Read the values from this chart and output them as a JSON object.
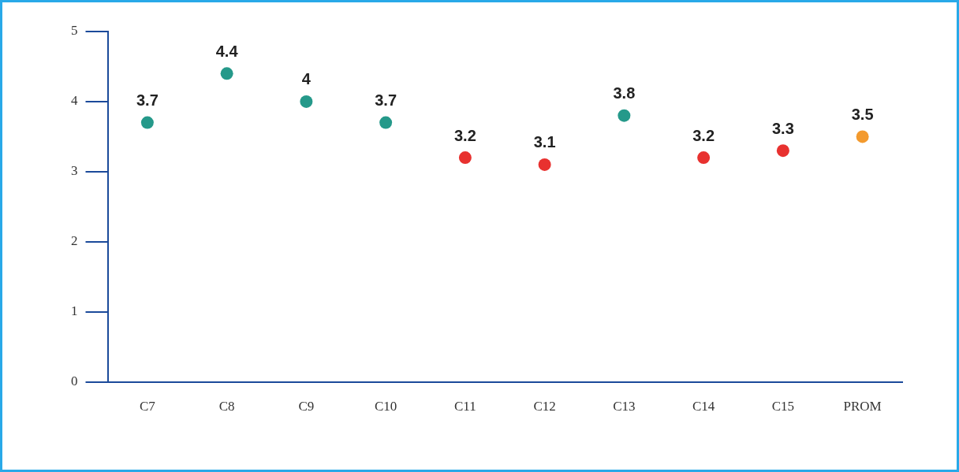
{
  "chart_data": {
    "type": "scatter",
    "categories": [
      "C7",
      "C8",
      "C9",
      "C10",
      "C11",
      "C12",
      "C13",
      "C14",
      "C15",
      "PROM"
    ],
    "values": [
      3.7,
      4.4,
      4,
      3.7,
      3.2,
      3.1,
      3.8,
      3.2,
      3.3,
      3.5
    ],
    "colors": [
      "#25998a",
      "#25998a",
      "#25998a",
      "#25998a",
      "#e8312f",
      "#e8312f",
      "#25998a",
      "#e8312f",
      "#e8312f",
      "#f39a2e"
    ],
    "ylim": [
      0,
      5
    ],
    "yticks": [
      0,
      1,
      2,
      3,
      4,
      5
    ],
    "grid": false,
    "legend": false,
    "marker": "circle",
    "data_labels": true
  }
}
